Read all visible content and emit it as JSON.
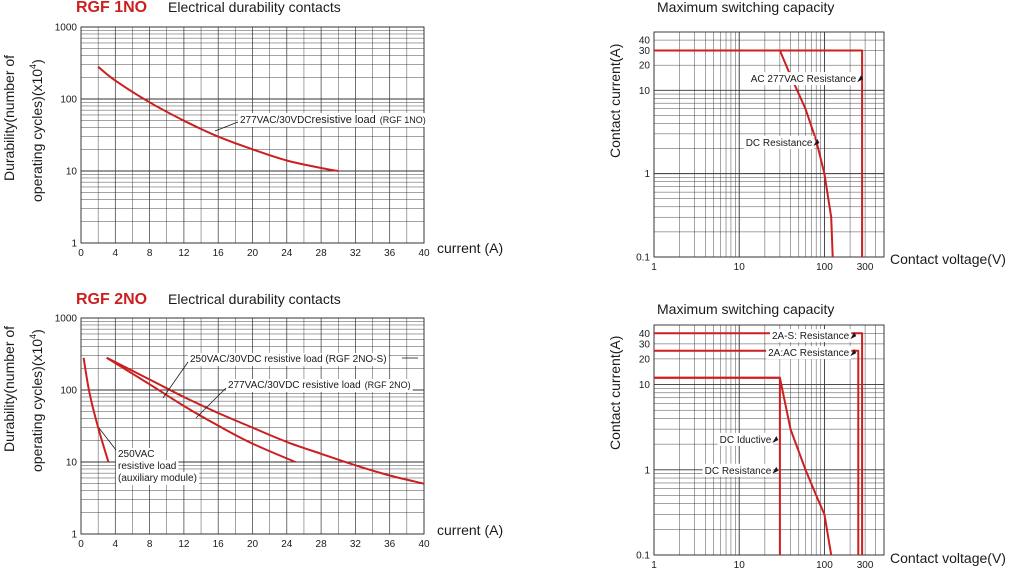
{
  "colors": {
    "curve": "#cc1f1f",
    "grid": "#333333",
    "text": "#1a1a1a"
  },
  "chart_data": [
    {
      "id": "c1",
      "type": "line",
      "brand": "RGF 1NO",
      "title": "Electrical durability contacts",
      "ylabel_line1": "Durability(number of",
      "ylabel_line2": "operating cycles)(x10",
      "ylabel_exp": "4",
      "ylabel_close": ")",
      "xlabel": "current (A)",
      "xscale": "linear",
      "yscale": "log",
      "xlim": [
        0,
        40
      ],
      "ylim": [
        1,
        1000
      ],
      "xticks": [
        0,
        4,
        8,
        12,
        16,
        20,
        24,
        28,
        32,
        36,
        40
      ],
      "yticks": [
        1,
        10,
        100,
        1000
      ],
      "series": [
        {
          "name": "277VAC/30VDC resistive load (RGF 1NO)",
          "x": [
            2,
            4,
            8,
            12,
            16,
            20,
            24,
            28,
            30
          ],
          "y": [
            280,
            180,
            90,
            50,
            30,
            20,
            14,
            11,
            10
          ]
        }
      ],
      "annotations": [
        {
          "text_a": "277VAC/30VDC",
          "text_b": "resistive load",
          "text_c": "(RGF 1NO)",
          "x": 13,
          "y": 30
        }
      ]
    },
    {
      "id": "c2",
      "type": "line",
      "title": "Maximum switching capacity",
      "ylabel": "Contact current(A)",
      "xlabel": "Contact voltage(V)",
      "xscale": "log",
      "yscale": "log",
      "xlim": [
        1,
        500
      ],
      "ylim": [
        0.1,
        50
      ],
      "xticks": [
        1,
        10,
        100,
        300
      ],
      "yticks": [
        0.1,
        1,
        10,
        20,
        30,
        40
      ],
      "series": [
        {
          "name": "AC 277VAC Resistance",
          "x": [
            1,
            277,
            277
          ],
          "y": [
            30,
            30,
            0.1
          ]
        },
        {
          "name": "DC Resistance",
          "x": [
            1,
            30,
            40,
            60,
            80,
            100,
            120,
            125
          ],
          "y": [
            30,
            30,
            15,
            6,
            2.5,
            1,
            0.3,
            0.1
          ]
        }
      ],
      "annotations": [
        {
          "text": "AC 277VAC Resistance",
          "x": 277,
          "y": 14
        },
        {
          "text": "DC Resistance",
          "x": 85,
          "y": 2.4
        }
      ]
    },
    {
      "id": "c3",
      "type": "line",
      "brand": "RGF 2NO",
      "title": "Electrical durability contacts",
      "ylabel_line1": "Durability(number of",
      "ylabel_line2": "operating cycles)(x10",
      "ylabel_exp": "4",
      "ylabel_close": ")",
      "xlabel": "current (A)",
      "xscale": "linear",
      "yscale": "log",
      "xlim": [
        0,
        40
      ],
      "ylim": [
        1,
        1000
      ],
      "xticks": [
        0,
        4,
        8,
        12,
        16,
        20,
        24,
        28,
        32,
        36,
        40
      ],
      "yticks": [
        1,
        10,
        100,
        1000
      ],
      "series": [
        {
          "name": "250VAC/30VDC resistive load (RGF 2NO-S)",
          "x": [
            3,
            8,
            12,
            16,
            20,
            24,
            28,
            32,
            36,
            40
          ],
          "y": [
            280,
            140,
            80,
            48,
            30,
            19,
            13,
            9,
            6.5,
            5
          ]
        },
        {
          "name": "277VAC/30VDC resistive load (RGF 2NO)",
          "x": [
            3,
            8,
            12,
            16,
            20,
            25
          ],
          "y": [
            280,
            120,
            60,
            32,
            18,
            10
          ]
        },
        {
          "name": "250VAC resistive load (auxiliary module)",
          "x": [
            0.3,
            1,
            2,
            3.2
          ],
          "y": [
            280,
            90,
            30,
            10
          ]
        }
      ],
      "annotations": [
        {
          "text": "250VAC/30VDC resistive load (RGF 2NO-S)"
        },
        {
          "text_a": "277VAC/30VDC resistive load",
          "text_b": "(RGF 2NO)"
        },
        {
          "line1": "250VAC",
          "line2": "resistive load",
          "line3": "(auxiliary module)"
        }
      ]
    },
    {
      "id": "c4",
      "type": "line",
      "title": "Maximum switching capacity",
      "ylabel": "Contact current(A)",
      "xlabel": "Contact voltage(V)",
      "xscale": "log",
      "yscale": "log",
      "xlim": [
        1,
        500
      ],
      "ylim": [
        0.1,
        50
      ],
      "xticks": [
        1,
        10,
        100,
        300
      ],
      "yticks": [
        0.1,
        1,
        10,
        20,
        30,
        40
      ],
      "series": [
        {
          "name": "2A-S: Resistance",
          "x": [
            1,
            277,
            277
          ],
          "y": [
            40,
            40,
            0.1
          ]
        },
        {
          "name": "2A:AC Resistance",
          "x": [
            1,
            250,
            250
          ],
          "y": [
            25,
            25,
            0.1
          ]
        },
        {
          "name": "DC Iductive",
          "x": [
            1,
            30,
            30
          ],
          "y": [
            12,
            12,
            0.1
          ]
        },
        {
          "name": "DC Resistance",
          "x": [
            1,
            30,
            40,
            60,
            80,
            100,
            120
          ],
          "y": [
            12,
            12,
            3,
            1,
            0.5,
            0.3,
            0.1
          ]
        }
      ],
      "annotations": [
        {
          "text": "2A-S: Resistance",
          "x": 230,
          "y": 38
        },
        {
          "text": "2A:AC Resistance",
          "x": 230,
          "y": 24
        },
        {
          "text": "DC Iductive",
          "x": 28,
          "y": 2.3
        },
        {
          "text": "DC Resistance",
          "x": 28,
          "y": 1
        }
      ]
    }
  ]
}
